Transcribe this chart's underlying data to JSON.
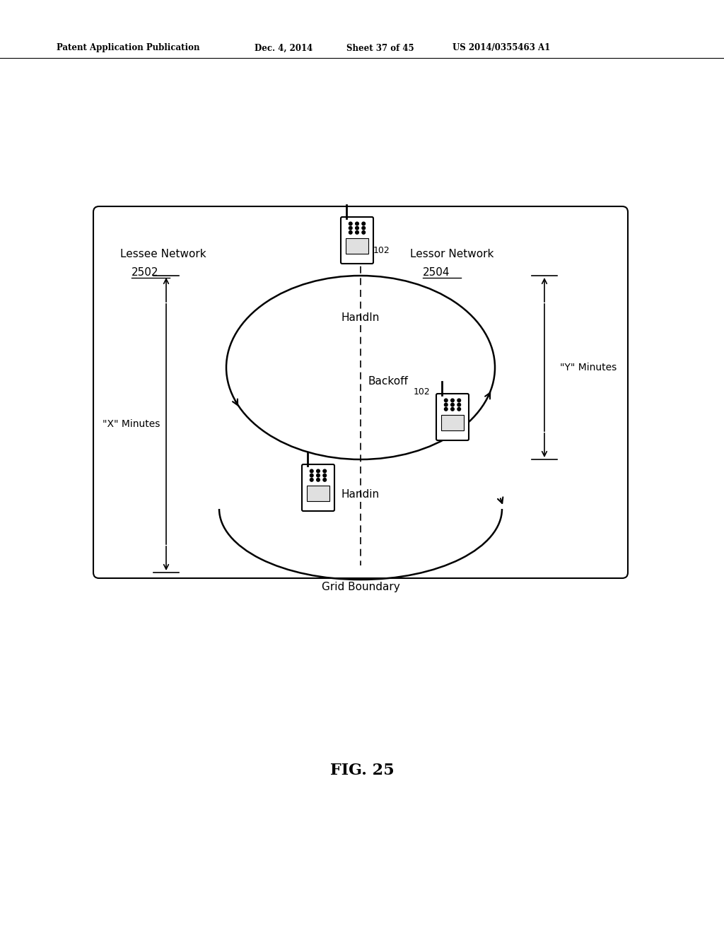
{
  "bg_color": "#ffffff",
  "title_header": "Patent Application Publication",
  "title_date": "Dec. 4, 2014",
  "title_sheet": "Sheet 37 of 45",
  "title_patent": "US 2014/0355463 A1",
  "fig_label": "FIG. 25",
  "lessee_label": "Lessee Network",
  "lessee_num": "2502",
  "lessor_label": "Lessor Network",
  "lessor_num": "2504",
  "handin_label": "HandIn",
  "backoff_label": "Backoff",
  "handin2_label": "Handin",
  "grid_boundary_label": "Grid Boundary",
  "x_minutes_label": "\"X\" Minutes",
  "y_minutes_label": "\"Y\" Minutes",
  "ref_102": "102"
}
